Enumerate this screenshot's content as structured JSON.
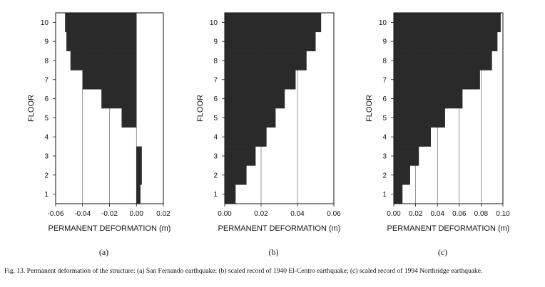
{
  "caption": "Fig. 13. Permanent deformation of the structure: (a) San Fernando earthquake; (b) scaled record of 1940 El-Centro earthquake; (c) scaled record of 1994 Northridge earthquake.",
  "colors": {
    "bar": "#2a2a2a",
    "axis": "#111111",
    "grid": "#555555"
  },
  "chart_data": [
    {
      "type": "bar",
      "orientation": "horizontal",
      "panel_label": "(a)",
      "xlabel": "PERMANENT DEFORMATION (m)",
      "ylabel": "FLOOR",
      "xlim": [
        -0.06,
        0.02
      ],
      "xticks": [
        "-0.06",
        "-0.04",
        "-0.02",
        "0.00",
        "0.02"
      ],
      "xtick_values": [
        -0.06,
        -0.04,
        -0.02,
        0.0,
        0.02
      ],
      "grid": "vertical",
      "categories": [
        "1",
        "2",
        "3",
        "4",
        "5",
        "6",
        "7",
        "8",
        "9",
        "10"
      ],
      "values": [
        0.003,
        0.004,
        0.004,
        0.0,
        -0.011,
        -0.026,
        -0.04,
        -0.049,
        -0.052,
        -0.053
      ]
    },
    {
      "type": "bar",
      "orientation": "horizontal",
      "panel_label": "(b)",
      "xlabel": "PERMANENT DEFORMATION (m)",
      "ylabel": "FLOOR",
      "xlim": [
        0.0,
        0.06
      ],
      "xticks": [
        "0.00",
        "0.02",
        "0.04",
        "0.06"
      ],
      "xtick_values": [
        0.0,
        0.02,
        0.04,
        0.06
      ],
      "grid": "vertical",
      "categories": [
        "1",
        "2",
        "3",
        "4",
        "5",
        "6",
        "7",
        "8",
        "9",
        "10"
      ],
      "values": [
        0.006,
        0.012,
        0.017,
        0.023,
        0.028,
        0.033,
        0.039,
        0.045,
        0.05,
        0.053
      ]
    },
    {
      "type": "bar",
      "orientation": "horizontal",
      "panel_label": "(c)",
      "xlabel": "PERMANENT DEFORMATION (m)",
      "ylabel": "FLOOR",
      "xlim": [
        0.0,
        0.1
      ],
      "xticks": [
        "0.00",
        "0.02",
        "0.04",
        "0.06",
        "0.08",
        "0.10"
      ],
      "xtick_values": [
        0.0,
        0.02,
        0.04,
        0.06,
        0.08,
        0.1
      ],
      "grid": "vertical",
      "categories": [
        "1",
        "2",
        "3",
        "4",
        "5",
        "6",
        "7",
        "8",
        "9",
        "10"
      ],
      "values": [
        0.008,
        0.015,
        0.023,
        0.034,
        0.047,
        0.063,
        0.079,
        0.09,
        0.095,
        0.098
      ]
    }
  ]
}
